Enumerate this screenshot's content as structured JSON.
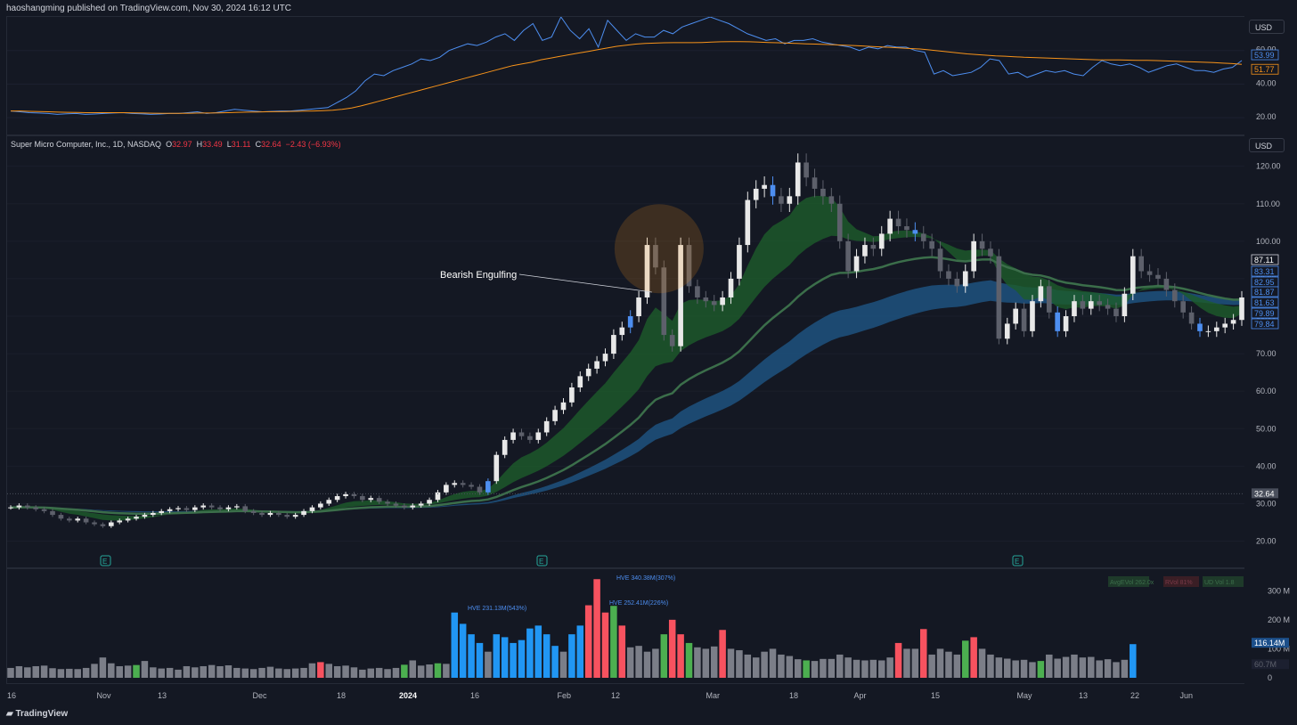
{
  "header": {
    "published": "haoshangming published on TradingView.com, Nov 30, 2024 16:12 UTC"
  },
  "legend": {
    "symbol": "Super Micro Computer, Inc., 1D, NASDAQ",
    "open_label": "O",
    "open": "32.97",
    "high_label": "H",
    "high": "33.49",
    "low_label": "L",
    "low": "31.11",
    "close_label": "C",
    "close": "32.64",
    "change": "−2.43 (−6.93%)"
  },
  "currency": "USD",
  "annotation": {
    "text": "Bearish Engulfing"
  },
  "volume_labels": [
    "HVE 231.13M(543%)",
    "HVE 340.38M(307%)",
    "HVE 252.41M(226%)"
  ],
  "volume_legend": [
    "AvgEVol 262.0x",
    "RVol 81%",
    "UD Vol 1.8"
  ],
  "earnings_marker": "E",
  "colors": {
    "up": "#e8e8e8",
    "down": "#5d606b",
    "accent_blue": "#4d8ef0",
    "orange": "#f7931a",
    "vol_red": "#f7525f",
    "vol_green": "#4caf50",
    "vol_blue": "#2196f3",
    "vol_gray": "#7b7e88"
  },
  "footer": {
    "brand": "TradingView"
  },
  "chart_data": [
    {
      "type": "line",
      "pane": "top-indicator",
      "y_ticks": [
        "60.00",
        "40.00",
        "20.00"
      ],
      "ylim": [
        10,
        80
      ],
      "last_values": [
        "53.99",
        "51.77"
      ],
      "series": [
        {
          "values": [
            24,
            23.5,
            23,
            22.8,
            22.5,
            22,
            22.3,
            22.5,
            22,
            22.2,
            22.5,
            22.8,
            23,
            22.5,
            22.3,
            22,
            22.2,
            22.5,
            22.5,
            23,
            23.5,
            22.5,
            23,
            24,
            25,
            24.5,
            24,
            23.5,
            23.8,
            24,
            24,
            24.5,
            25,
            25.5,
            26,
            29,
            32,
            36,
            42,
            46,
            45,
            48,
            50,
            52,
            55,
            54,
            56,
            60,
            62,
            64,
            63,
            65,
            68,
            70,
            66,
            72,
            76,
            66,
            68,
            80,
            72,
            67,
            73,
            62,
            78,
            72,
            66,
            70,
            68,
            68,
            72,
            70,
            74,
            76,
            78,
            80,
            78,
            76,
            73,
            70,
            68,
            66,
            67,
            64,
            66,
            66,
            67,
            65,
            64,
            63,
            62,
            60,
            62,
            61,
            63,
            62,
            62,
            60,
            59,
            46,
            48,
            45,
            46,
            47,
            50,
            55,
            54,
            46,
            47,
            44,
            46,
            48,
            47,
            48,
            46,
            45,
            50,
            54,
            52,
            51,
            52,
            50,
            47,
            49,
            51,
            52,
            50,
            48,
            48,
            47,
            49,
            50,
            53.99
          ]
        },
        {
          "values": [
            24,
            24,
            23.8,
            23.7,
            23.5,
            23.3,
            23.2,
            23.1,
            23,
            23,
            23,
            23,
            23,
            22.9,
            22.8,
            22.7,
            22.6,
            22.6,
            22.6,
            22.7,
            22.8,
            22.8,
            22.9,
            23,
            23.2,
            23.3,
            23.4,
            23.5,
            23.6,
            23.7,
            23.8,
            23.9,
            24,
            24.2,
            24.5,
            25,
            25.8,
            27,
            28.5,
            30,
            31.5,
            33,
            34.5,
            36,
            37.5,
            39,
            40.5,
            42,
            43.5,
            45,
            46.5,
            48,
            49.5,
            51,
            52,
            53,
            54.5,
            55.5,
            56.5,
            57.5,
            58.5,
            59.5,
            60.5,
            61.5,
            62.5,
            63.2,
            63.8,
            64.2,
            64.4,
            64.6,
            64.7,
            64.7,
            64.7,
            64.8,
            65,
            65.2,
            65.3,
            65.3,
            65.2,
            65,
            64.8,
            64.6,
            64.4,
            64.2,
            64,
            63.8,
            63.6,
            63.4,
            63.2,
            63,
            62.7,
            62.4,
            62.1,
            61.8,
            61.5,
            61.2,
            60.9,
            60.4,
            59.8,
            59.2,
            58.6,
            58,
            57.6,
            57.2,
            56.8,
            56.6,
            56.3,
            56,
            55.8,
            55.6,
            55.4,
            55.2,
            55,
            54.8,
            54.6,
            54.4,
            54.4,
            54.4,
            54.3,
            54.2,
            54.1,
            54,
            53.8,
            53.6,
            53.4,
            53.2,
            53,
            52.8,
            52.5,
            52.2,
            51.77
          ]
        }
      ]
    },
    {
      "type": "candlestick",
      "pane": "price",
      "y_ticks": [
        "120.00",
        "110.00",
        "100.00",
        "90.00",
        "80.00",
        "70.00",
        "60.00",
        "50.00",
        "40.00",
        "30.00",
        "20.00"
      ],
      "ylim": [
        13,
        128
      ],
      "x_ticks": [
        "16",
        "Nov",
        "13",
        "Dec",
        "18",
        "2024",
        "16",
        "Feb",
        "12",
        "Mar",
        "18",
        "Apr",
        "15",
        "May",
        "13",
        "22",
        "Jun"
      ],
      "price_tags": [
        "87.11",
        "83.31",
        "82.95",
        "81.87",
        "81.63",
        "79.89",
        "79.84"
      ],
      "last_price": "32.64",
      "closes": [
        29,
        29.5,
        29,
        28.5,
        28,
        27,
        26,
        25.5,
        26,
        25,
        24.5,
        24,
        25,
        25.5,
        26,
        26.5,
        27,
        27.5,
        28,
        28.5,
        28.8,
        28.3,
        29,
        29.5,
        29,
        28.5,
        29,
        29.3,
        28,
        27.5,
        27,
        27.5,
        27,
        26.5,
        27,
        28,
        29,
        30,
        31,
        32,
        32.5,
        32,
        31,
        31.5,
        30.5,
        30,
        29.5,
        29,
        29.5,
        30,
        31,
        33,
        35,
        35.5,
        35,
        34.5,
        33,
        36,
        43,
        47,
        49,
        48,
        47,
        49,
        52,
        55,
        57,
        61,
        64,
        66,
        68,
        70,
        75,
        77,
        80,
        85,
        99,
        93,
        75,
        72,
        99,
        88,
        85,
        84,
        83,
        85,
        90,
        99,
        111,
        114,
        115,
        112,
        110,
        112,
        121,
        117,
        114,
        112,
        110,
        100,
        92,
        96,
        99,
        98,
        102,
        106,
        104,
        103,
        102,
        100,
        98,
        92,
        90,
        88,
        92,
        100,
        98,
        96,
        74,
        78,
        82,
        76,
        84,
        88,
        81,
        76,
        80,
        84,
        82,
        84,
        83,
        82,
        80,
        86,
        96,
        92,
        91,
        90,
        87,
        84,
        81,
        78,
        76,
        76,
        77,
        78,
        79,
        85
      ]
    },
    {
      "type": "bar",
      "pane": "volume",
      "y_ticks": [
        "300 M",
        "200 M",
        "100 M",
        "0"
      ],
      "ylim": [
        0,
        350
      ],
      "last_values": [
        "116.14M",
        "60.7M"
      ],
      "values": [
        34,
        40,
        36,
        40,
        42,
        33,
        30,
        31,
        30,
        34,
        48,
        70,
        50,
        40,
        42,
        44,
        58,
        36,
        32,
        34,
        28,
        40,
        36,
        40,
        44,
        40,
        43,
        34,
        32,
        30,
        34,
        38,
        32,
        30,
        32,
        34,
        50,
        54,
        48,
        40,
        42,
        36,
        28,
        32,
        34,
        30,
        34,
        45,
        60,
        42,
        46,
        50,
        48,
        225,
        186,
        150,
        120,
        90,
        150,
        140,
        120,
        130,
        170,
        180,
        150,
        110,
        90,
        150,
        180,
        250,
        340,
        225,
        248,
        180,
        105,
        110,
        90,
        100,
        150,
        200,
        150,
        120,
        105,
        100,
        108,
        165,
        100,
        95,
        80,
        70,
        90,
        100,
        80,
        75,
        64,
        60,
        58,
        65,
        65,
        80,
        70,
        62,
        60,
        62,
        60,
        70,
        120,
        100,
        100,
        168,
        80,
        100,
        90,
        80,
        128,
        140,
        100,
        80,
        70,
        66,
        60,
        62,
        54,
        58,
        80,
        66,
        72,
        80,
        70,
        72,
        60,
        64,
        54,
        62,
        116
      ]
    }
  ]
}
